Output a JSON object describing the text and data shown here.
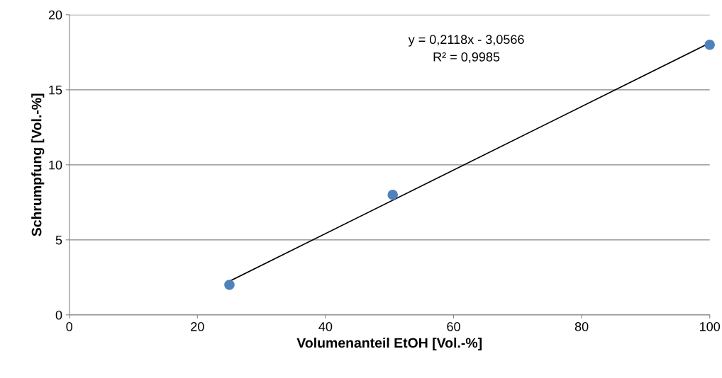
{
  "chart_data": {
    "type": "scatter",
    "xlabel": "Volumenanteil EtOH [Vol.-%]",
    "ylabel": "Schrumpfung [Vol.-%]",
    "series": [
      {
        "color": "#4f81bd",
        "x": [
          25,
          50.5,
          100
        ],
        "values": [
          2,
          8,
          18
        ],
        "marker": "circle"
      },
      {
        "type": "line",
        "color": "#000000",
        "x": [
          25,
          100
        ],
        "values": [
          2.24,
          18.12
        ],
        "marker": "none",
        "line_style": "solid"
      }
    ],
    "annotations": [
      "y = 0,2118x - 3,0566\nR² = 0,9985"
    ],
    "xlim": [
      0,
      100
    ],
    "xticks": [
      0,
      20,
      40,
      60,
      80,
      100
    ],
    "ylim": [
      0,
      20
    ],
    "yticks": [
      0,
      5,
      10,
      15,
      20
    ],
    "grid": "y",
    "legend": false
  }
}
